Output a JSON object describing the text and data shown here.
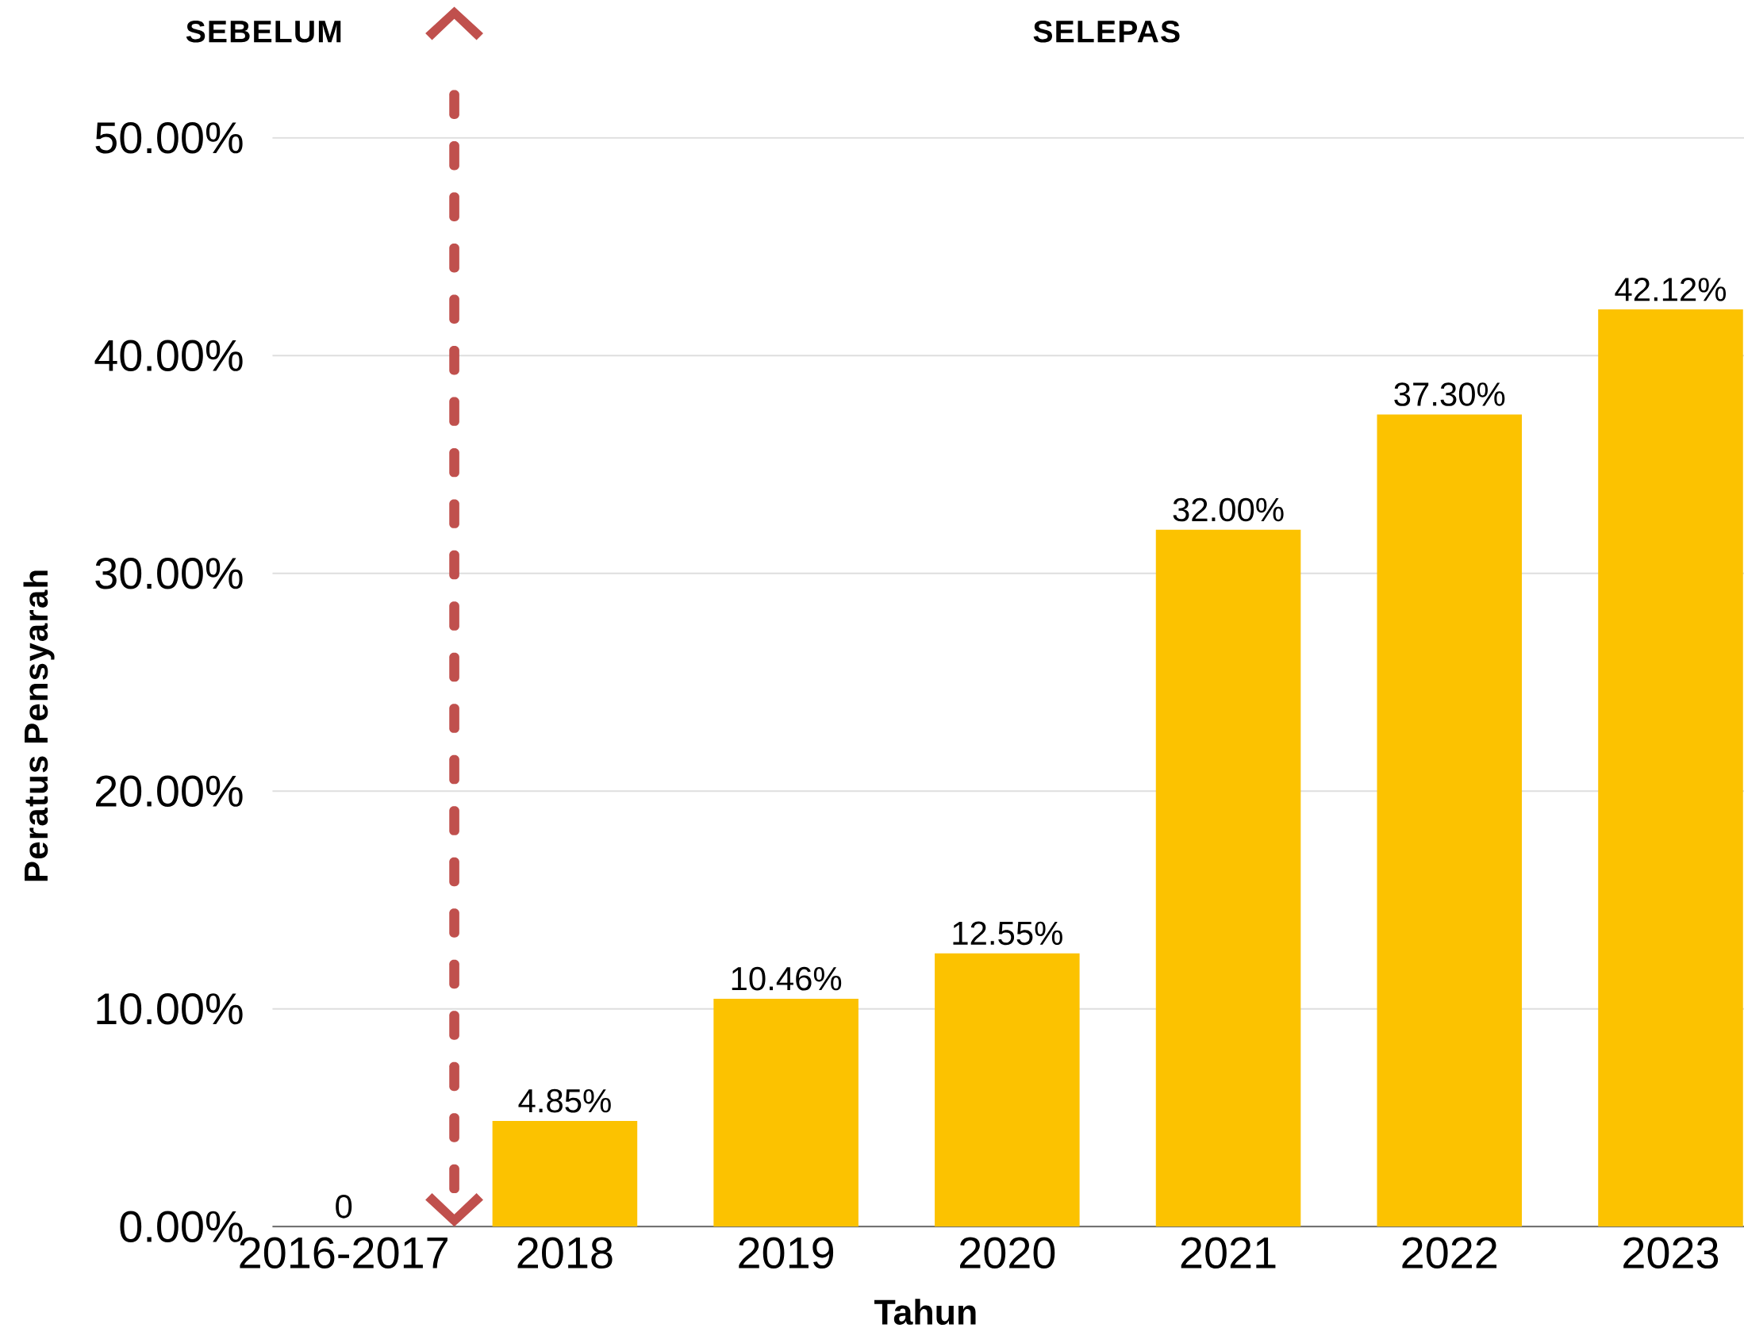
{
  "chart_data": {
    "type": "bar",
    "xlabel": "Tahun",
    "ylabel": "Peratus Pensyarah",
    "annotations": [
      "SEBELUM",
      "SELEPAS"
    ],
    "categories": [
      "2016-2017",
      "2018",
      "2019",
      "2020",
      "2021",
      "2022",
      "2023"
    ],
    "values": [
      0,
      4.85,
      10.46,
      12.55,
      32.0,
      37.3,
      42.12
    ],
    "value_labels": [
      "0",
      "4.85%",
      "10.46%",
      "12.55%",
      "32.00%",
      "37.30%",
      "42.12%"
    ],
    "color": "#fcc200",
    "ylim": [
      0,
      50
    ],
    "yticks": [
      {
        "value": 0,
        "label": "0.00%"
      },
      {
        "value": 10,
        "label": "10.00%"
      },
      {
        "value": 20,
        "label": "20.00%"
      },
      {
        "value": 30,
        "label": "30.00%"
      },
      {
        "value": 40,
        "label": "40.00%"
      },
      {
        "value": 50,
        "label": "50.00%"
      }
    ],
    "grid": "y"
  }
}
